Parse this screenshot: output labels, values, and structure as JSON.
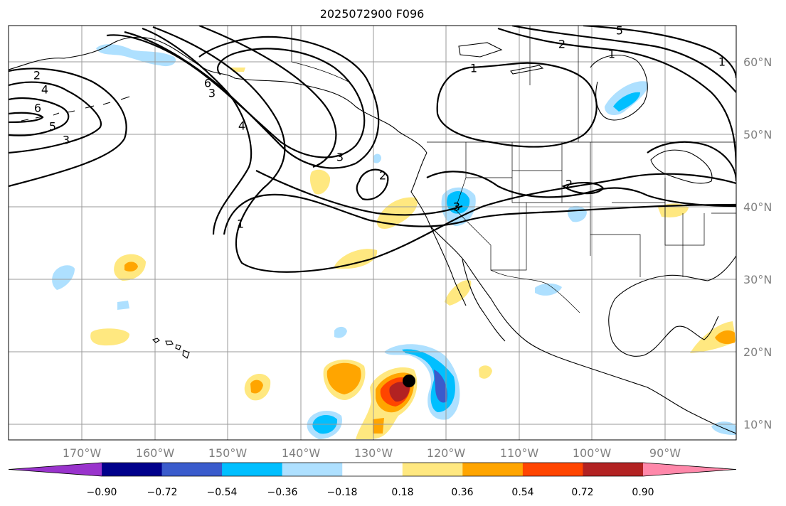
{
  "title": "2025072900 F096",
  "lat_labels": [
    "60°N",
    "50°N",
    "40°N",
    "30°N",
    "20°N",
    "10°N"
  ],
  "lon_labels": [
    "170°W",
    "160°W",
    "150°W",
    "140°W",
    "130°W",
    "120°W",
    "110°W",
    "100°W",
    "90°W"
  ],
  "colorbar": {
    "ticks": [
      "−0.90",
      "−0.72",
      "−0.54",
      "−0.36",
      "−0.18",
      "0.18",
      "0.36",
      "0.54",
      "0.72",
      "0.90"
    ],
    "colors": [
      "#9933cc",
      "#00008b",
      "#3a5bcc",
      "#00bfff",
      "#aee0ff",
      "#ffffff",
      "#ffe880",
      "#ffa500",
      "#ff4500",
      "#b22222",
      "#ff88aa"
    ]
  },
  "contour_labels": [
    "1",
    "1",
    "1",
    "1",
    "2",
    "2",
    "2",
    "2",
    "3",
    "3",
    "3",
    "3",
    "4",
    "4",
    "5",
    "5",
    "6",
    "6"
  ],
  "map": {
    "projection": "cylindrical",
    "extent_lon": [
      -180,
      -80
    ],
    "extent_lat": [
      8,
      65
    ],
    "marker": "storm-center-dot"
  }
}
